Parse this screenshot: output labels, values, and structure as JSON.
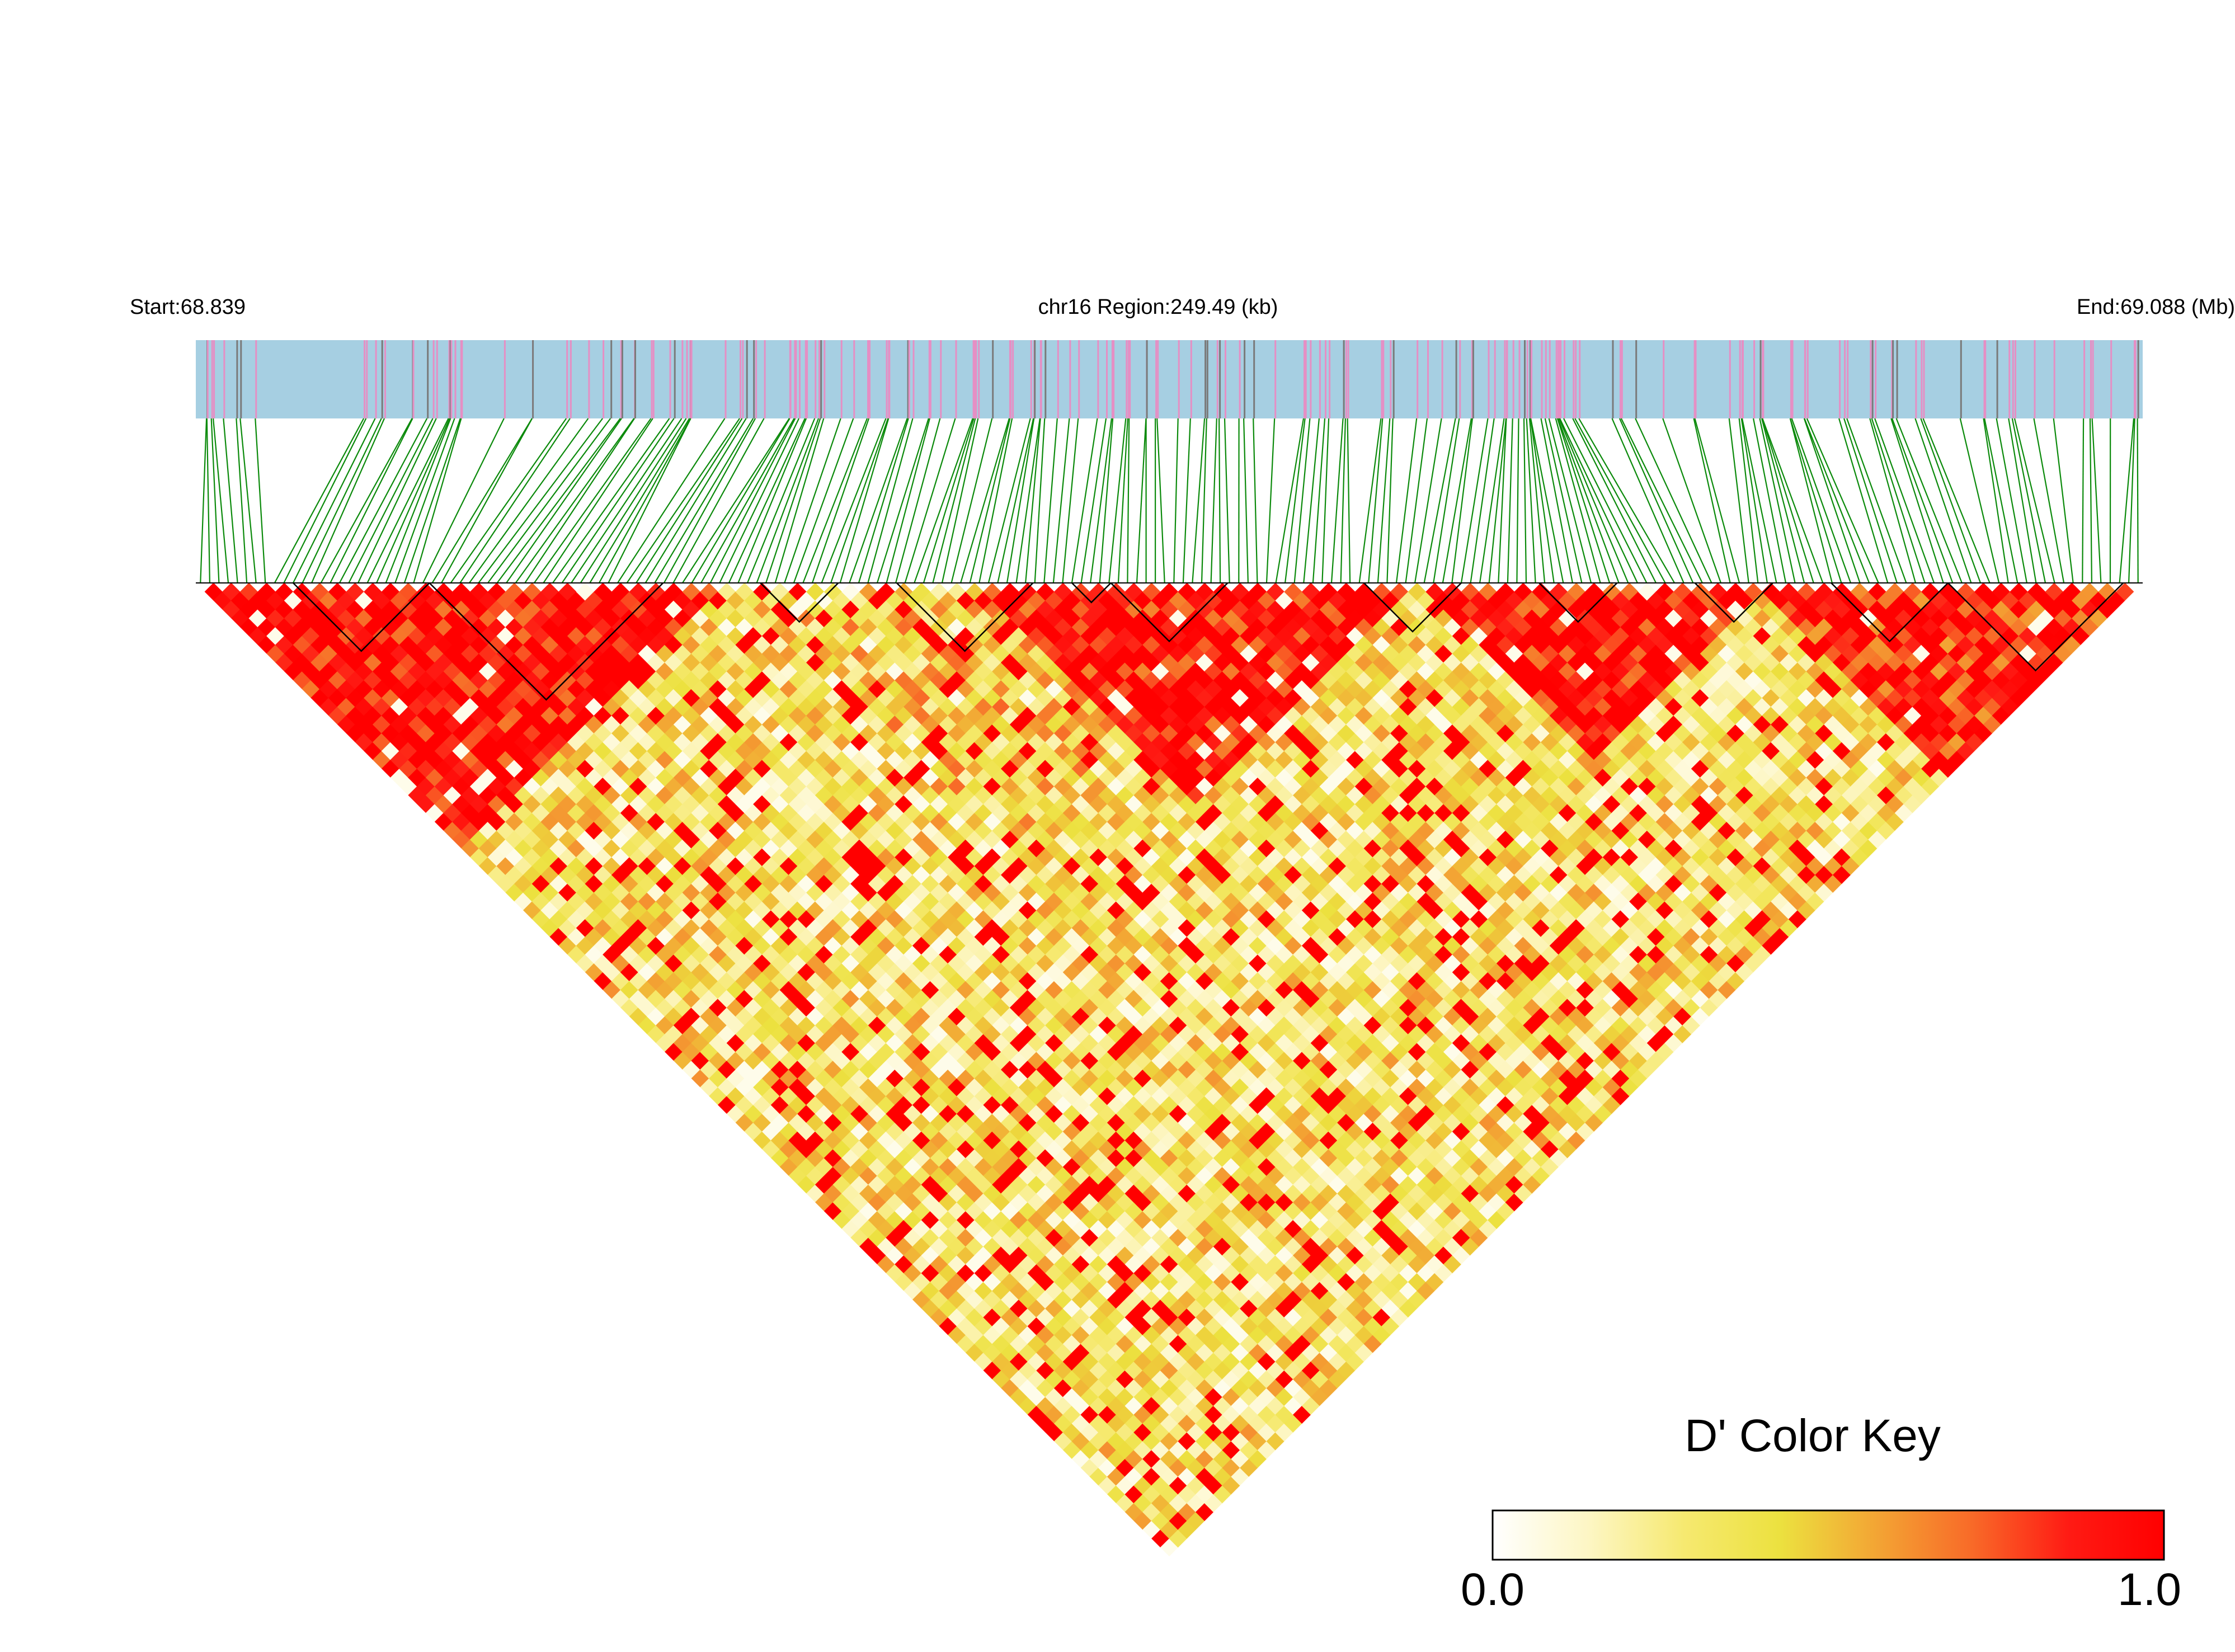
{
  "chart_data": {
    "type": "heatmap",
    "subtype": "LD triangle (pairwise D')",
    "chromosome": "chr16",
    "start_label": "Start:68.839",
    "region_label": "chr16 Region:249.49 (kb)",
    "end_label": "End:69.088 (Mb)",
    "region_start_mb": 68.839,
    "region_end_mb": 69.088,
    "region_size_kb": 249.49,
    "color_key": {
      "title": "D' Color Key",
      "min_label": "0.0",
      "max_label": "1.0",
      "min": 0.0,
      "max": 1.0,
      "gradient": [
        "#ffffff",
        "#fdf6c4",
        "#f6e970",
        "#ece13f",
        "#f3a534",
        "#f86a28",
        "#ff1b14",
        "#ff0000"
      ]
    },
    "track_colors": {
      "snp_bar_background": "#a6cfe2",
      "snp_marker_a": "#e58fc4",
      "snp_marker_b": "#7a7a7a",
      "connector_lines": "#0b8a0b",
      "block_outline": "#000000"
    },
    "haplotype_blocks": [
      {
        "start_fraction": 0.05,
        "end_fraction": 0.12
      },
      {
        "start_fraction": 0.12,
        "end_fraction": 0.24
      },
      {
        "start_fraction": 0.29,
        "end_fraction": 0.33
      },
      {
        "start_fraction": 0.36,
        "end_fraction": 0.43
      },
      {
        "start_fraction": 0.45,
        "end_fraction": 0.47
      },
      {
        "start_fraction": 0.47,
        "end_fraction": 0.53
      },
      {
        "start_fraction": 0.6,
        "end_fraction": 0.65
      },
      {
        "start_fraction": 0.69,
        "end_fraction": 0.73
      },
      {
        "start_fraction": 0.77,
        "end_fraction": 0.81
      },
      {
        "start_fraction": 0.84,
        "end_fraction": 0.9
      },
      {
        "start_fraction": 0.9,
        "end_fraction": 0.99
      }
    ],
    "ld_regions": [
      {
        "description": "high LD block left",
        "from_fraction": 0.0,
        "to_fraction": 0.27,
        "mean_d_prime": 0.95
      },
      {
        "description": "moderate LD middle",
        "from_fraction": 0.27,
        "to_fraction": 0.55,
        "mean_d_prime": 0.45
      },
      {
        "description": "high LD central block",
        "from_fraction": 0.4,
        "to_fraction": 0.62,
        "mean_d_prime": 0.92
      },
      {
        "description": "high LD right block",
        "from_fraction": 0.62,
        "to_fraction": 0.8,
        "mean_d_prime": 0.93
      },
      {
        "description": "high LD far right",
        "from_fraction": 0.8,
        "to_fraction": 1.0,
        "mean_d_prime": 0.85
      }
    ]
  }
}
